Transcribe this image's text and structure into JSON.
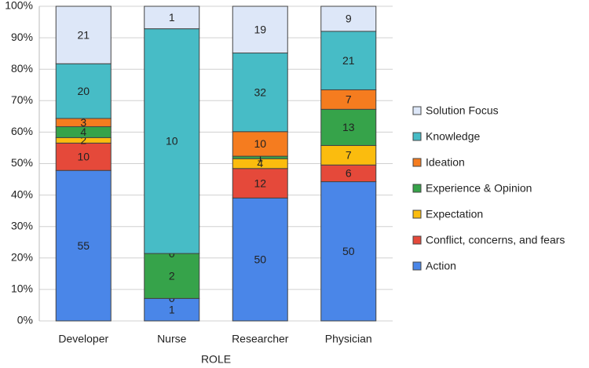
{
  "chart_data": {
    "type": "bar",
    "stacked": "percent",
    "x_label": "ROLE",
    "categories": [
      "Developer",
      "Nurse",
      "Researcher",
      "Physician"
    ],
    "series": [
      {
        "name": "Action",
        "color": "#4a86e8",
        "values": [
          55,
          1,
          50,
          50
        ]
      },
      {
        "name": "Conflict, concerns, and fears",
        "color": "#e5493a",
        "values": [
          10,
          0,
          12,
          6
        ]
      },
      {
        "name": "Expectation",
        "color": "#fbbc0e",
        "values": [
          2,
          null,
          4,
          7
        ]
      },
      {
        "name": "Experience & Opinion",
        "color": "#36a34a",
        "values": [
          4,
          2,
          1,
          13
        ]
      },
      {
        "name": "Ideation",
        "color": "#f57c1f",
        "values": [
          3,
          0,
          10,
          7
        ]
      },
      {
        "name": "Knowledge",
        "color": "#47bcc6",
        "values": [
          20,
          10,
          32,
          21
        ]
      },
      {
        "name": "Solution Focus",
        "color": "#dde7f8",
        "values": [
          21,
          1,
          19,
          9
        ]
      }
    ],
    "ylim": [
      0,
      100
    ],
    "yticks": [
      {
        "value": 0,
        "label": "0%"
      },
      {
        "value": 10,
        "label": "10%"
      },
      {
        "value": 20,
        "label": "20%"
      },
      {
        "value": 30,
        "label": "30%"
      },
      {
        "value": 40,
        "label": "40%"
      },
      {
        "value": 50,
        "label": "50%"
      },
      {
        "value": 60,
        "label": "60%"
      },
      {
        "value": 70,
        "label": "70%"
      },
      {
        "value": 80,
        "label": "80%"
      },
      {
        "value": 90,
        "label": "90%"
      },
      {
        "value": 100,
        "label": "100%"
      }
    ],
    "grid": true,
    "legend": "right"
  }
}
